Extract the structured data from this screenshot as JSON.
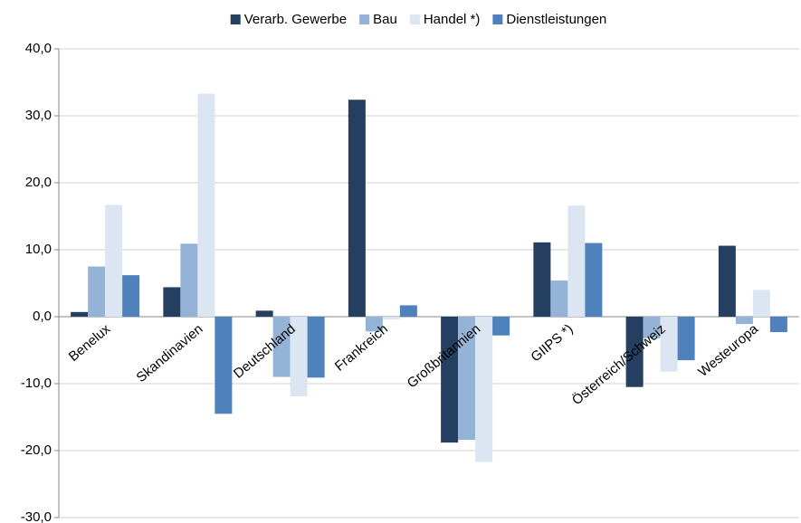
{
  "chart_data": {
    "type": "bar",
    "categories": [
      "Benelux",
      "Skandinavien",
      "Deutschland",
      "Frankreich",
      "Großbritannien",
      "GIIPS *)",
      "Österreich/Schweiz",
      "Westeuropa"
    ],
    "series": [
      {
        "name": "Verarb. Gewerbe",
        "color": "#243f60",
        "values": [
          0.7,
          4.4,
          0.9,
          32.4,
          -18.8,
          11.1,
          -10.5,
          10.6
        ]
      },
      {
        "name": "Bau",
        "color": "#95b3d7",
        "values": [
          7.5,
          10.9,
          -9.0,
          -2.2,
          -18.4,
          5.4,
          -3.2,
          -1.1
        ]
      },
      {
        "name": "Handel *)",
        "color": "#dce6f2",
        "values": [
          16.7,
          33.3,
          -11.9,
          -0.4,
          -21.7,
          16.6,
          -8.2,
          4.0
        ]
      },
      {
        "name": "Dienstleistungen",
        "color": "#4f81bd",
        "values": [
          6.2,
          -14.5,
          -9.1,
          1.7,
          -2.8,
          11.0,
          -6.5,
          -2.3
        ]
      }
    ],
    "ylim": [
      -30,
      40
    ],
    "yticks": [
      {
        "value": -30,
        "label": "-30,0"
      },
      {
        "value": -20,
        "label": "-20,0"
      },
      {
        "value": -10,
        "label": "-10,0"
      },
      {
        "value": 0,
        "label": "0,0"
      },
      {
        "value": 10,
        "label": "10,0"
      },
      {
        "value": 20,
        "label": "20,0"
      },
      {
        "value": 30,
        "label": "30,0"
      },
      {
        "value": 40,
        "label": "40,0"
      }
    ],
    "grid": true,
    "legend": "top"
  }
}
